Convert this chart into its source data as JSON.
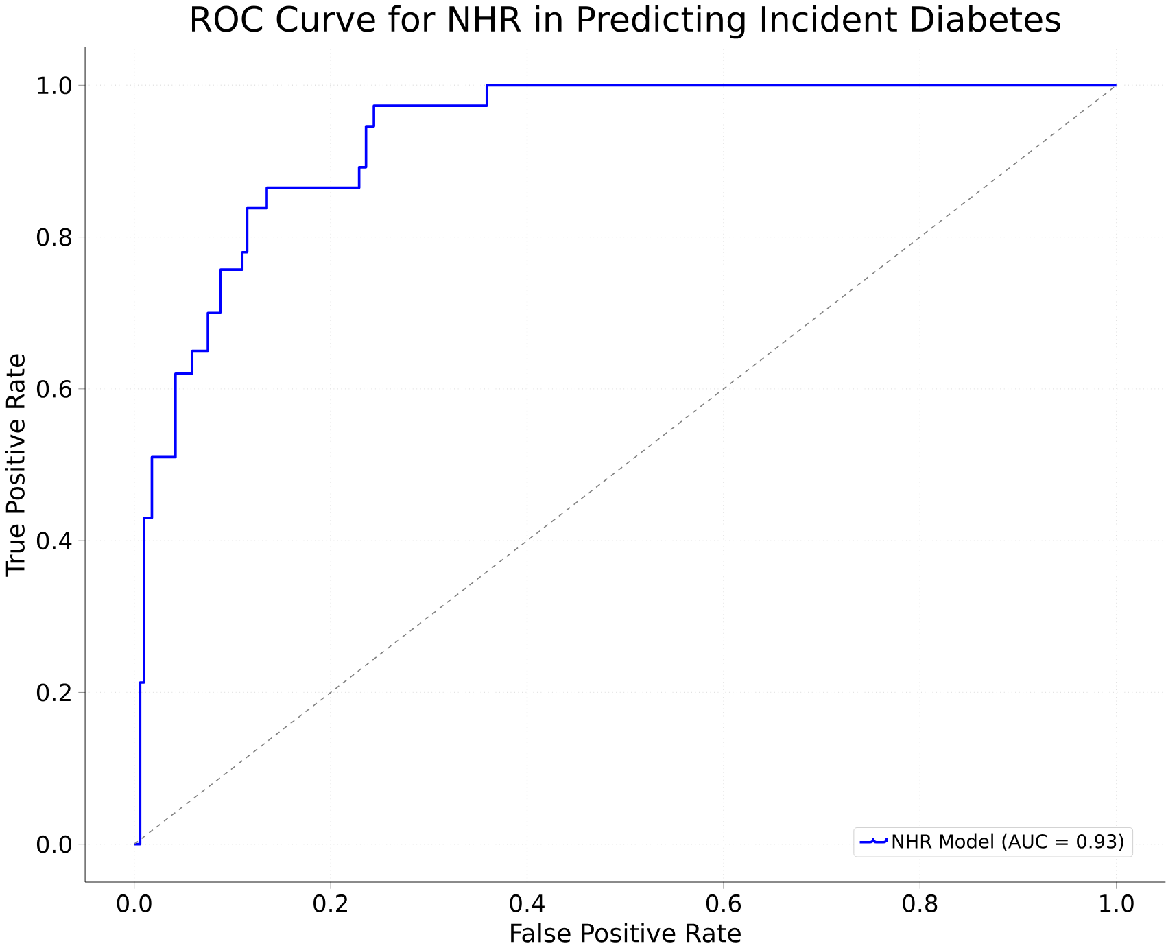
{
  "chart_data": {
    "type": "line",
    "title": "ROC Curve for NHR in Predicting Incident Diabetes",
    "xlabel": "False Positive Rate",
    "ylabel": "True Positive Rate",
    "xlim": [
      -0.05,
      1.05
    ],
    "ylim": [
      -0.05,
      1.05
    ],
    "xticks": [
      {
        "value": 0,
        "label": "0.0"
      },
      0.2,
      0.4,
      0.6,
      0.8,
      {
        "value": 1,
        "label": "1.0"
      }
    ],
    "yticks": [
      {
        "value": 0,
        "label": "0.0"
      },
      0.2,
      0.4,
      0.6,
      0.8,
      {
        "value": 1,
        "label": "1.0"
      }
    ],
    "grid": true,
    "legend": "bottom right",
    "series": [
      {
        "name": "NHR Model (AUC = 0.93)",
        "type": "step",
        "color": "#0000ff",
        "line_style": "solid",
        "x": [
          0,
          0.006,
          0.01,
          0.018,
          0.042,
          0.059,
          0.075,
          0.088,
          0.11,
          0.115,
          0.135,
          0.229,
          0.236,
          0.244,
          0.359,
          1.0
        ],
        "values": [
          0,
          0.213,
          0.43,
          0.51,
          0.62,
          0.65,
          0.7,
          0.757,
          0.78,
          0.838,
          0.865,
          0.892,
          0.946,
          0.973,
          1.0,
          1.0
        ]
      },
      {
        "color": "#808080",
        "line_style": "dashed",
        "x": [
          0,
          1
        ],
        "values": [
          0,
          1
        ]
      }
    ]
  }
}
